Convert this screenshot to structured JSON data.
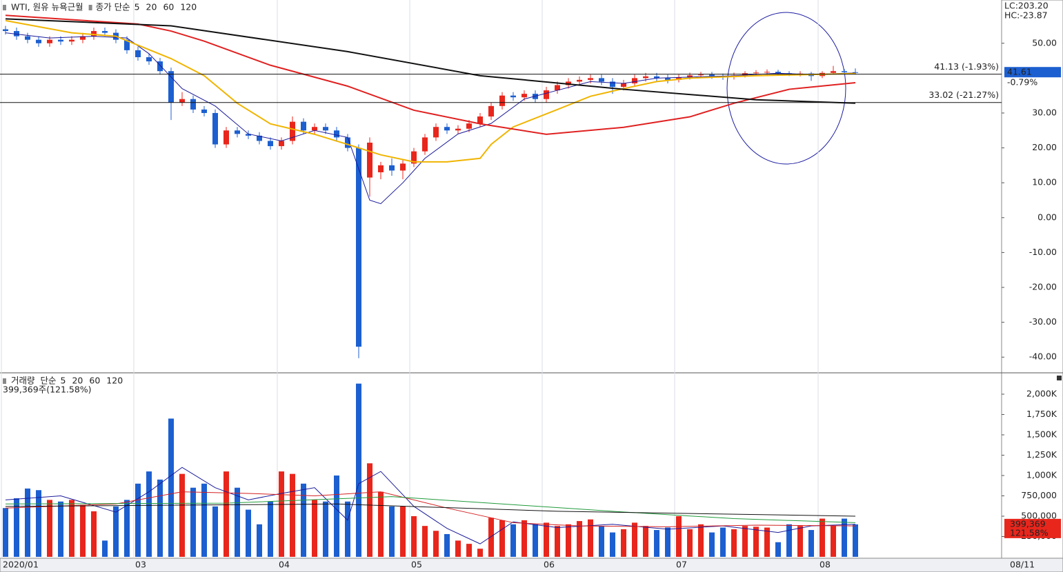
{
  "chart_data": [
    {
      "type": "candlestick",
      "title": "WTI, 원유 뉴욕근월",
      "ma_label": "종가 단순",
      "categories": [
        "2020/01",
        null,
        null,
        null,
        null,
        null,
        null,
        null,
        null,
        null,
        null,
        null,
        "03",
        null,
        null,
        null,
        null,
        null,
        null,
        null,
        null,
        null,
        null,
        null,
        null,
        "04",
        null,
        null,
        null,
        null,
        null,
        null,
        null,
        null,
        null,
        null,
        null,
        "05",
        null,
        null,
        null,
        null,
        null,
        null,
        null,
        null,
        null,
        null,
        null,
        "06",
        null,
        null,
        null,
        null,
        null,
        null,
        null,
        null,
        null,
        null,
        null,
        "07",
        null,
        null,
        null,
        null,
        null,
        null,
        null,
        null,
        null,
        null,
        null,
        null,
        "08",
        null,
        null,
        null
      ],
      "open": [
        54,
        53.5,
        52,
        51,
        50,
        51,
        50.5,
        51,
        52,
        53.5,
        53,
        51,
        48,
        46,
        44.8,
        42,
        33,
        34,
        31,
        30,
        21,
        25,
        24,
        23.5,
        22,
        20.5,
        22,
        27.5,
        25,
        26,
        25,
        23,
        20,
        11.5,
        13,
        15,
        13.5,
        15.5,
        19,
        23,
        26,
        25,
        25.5,
        27,
        29,
        32,
        35,
        34.5,
        35.5,
        34,
        36.5,
        38,
        39,
        39.5,
        40,
        39,
        37.5,
        38.5,
        40,
        40.5,
        40,
        39.5,
        40.2,
        40.8,
        41,
        40.6,
        40.3,
        40.8,
        41.4,
        41.6,
        41.8,
        41.4,
        41.2,
        41.3,
        40.6,
        41.5,
        42,
        41.7
      ],
      "high": [
        55,
        54.5,
        53,
        52,
        52,
        52,
        52,
        53,
        54.5,
        54.5,
        54,
        52,
        49,
        47,
        45.8,
        43,
        36,
        35,
        32,
        31,
        26,
        26,
        25,
        24.5,
        23,
        23,
        29,
        28.5,
        27,
        27,
        26,
        24,
        21,
        23,
        16,
        17,
        16.5,
        20,
        24,
        27,
        27,
        26.5,
        28,
        30,
        33,
        36,
        36,
        36.5,
        36.5,
        37.5,
        39,
        40,
        40.5,
        41,
        41,
        40,
        39.5,
        41,
        41.5,
        41.5,
        41,
        41,
        41.6,
        41.8,
        41.8,
        41.3,
        41.6,
        42,
        42.3,
        42.5,
        42.4,
        42,
        42,
        41.8,
        42,
        43.5,
        42.6,
        42.8
      ],
      "low": [
        52.5,
        51,
        50,
        49,
        49,
        49.5,
        49.5,
        50,
        51,
        52,
        50,
        47,
        45,
        43.8,
        41,
        28,
        32,
        30,
        29,
        20,
        20,
        23,
        22.5,
        21,
        19.5,
        19.5,
        21,
        24,
        24,
        24,
        22,
        19,
        -40.3,
        6,
        11,
        12,
        11,
        14.5,
        18,
        22,
        24,
        24,
        24.5,
        26,
        28,
        31,
        33.5,
        33.5,
        33,
        33,
        35.5,
        37,
        38,
        38.5,
        38,
        35.5,
        36.5,
        37.5,
        39,
        39,
        38.5,
        38.8,
        39.6,
        40,
        39.8,
        39.5,
        39.6,
        40.2,
        40.8,
        41,
        40.8,
        40.6,
        40.5,
        39.2,
        40,
        41,
        41,
        41
      ],
      "close": [
        53.5,
        52,
        51,
        50,
        51,
        50.5,
        51,
        52,
        53.5,
        53,
        51,
        48,
        46,
        44.8,
        42,
        33,
        34,
        31,
        30,
        21,
        25,
        24,
        23.5,
        22,
        20.5,
        22,
        27.5,
        25,
        26,
        25,
        23,
        20,
        -37,
        21.5,
        15,
        13.5,
        15.5,
        19,
        23,
        26,
        25,
        25.5,
        27,
        29,
        32,
        35,
        34.5,
        35.5,
        34,
        36.5,
        38,
        39,
        39.5,
        40,
        39,
        37.5,
        38.5,
        40,
        40.5,
        40,
        39.5,
        40.2,
        40.8,
        41,
        40.6,
        40.3,
        40.8,
        41.4,
        41.6,
        41.8,
        41.4,
        41.2,
        41.3,
        40.6,
        41.5,
        42,
        41.7,
        41.61
      ],
      "up_color": "#e8261c",
      "down_color": "#1c5fd0",
      "ylim": [
        -44.3,
        62.4
      ],
      "yticks": [
        {
          "value": 50,
          "label": "50.00"
        },
        {
          "value": 30,
          "label": "30.00"
        },
        {
          "value": 20,
          "label": "20.00"
        },
        {
          "value": 10,
          "label": "10.00"
        },
        {
          "value": 0,
          "label": "0.00"
        },
        {
          "value": -10,
          "label": "-10.00"
        },
        {
          "value": -20,
          "label": "-20.00"
        },
        {
          "value": -30,
          "label": "-30.00"
        },
        {
          "value": -40,
          "label": "-40.00"
        }
      ],
      "lines": [
        {
          "name": "5",
          "color": "#1a1a9a",
          "width": 1,
          "x": [
            0,
            4,
            8,
            11,
            13,
            16,
            19,
            22,
            25,
            28,
            31,
            33,
            34,
            36,
            38,
            41,
            44,
            47,
            50,
            53,
            56,
            59,
            62,
            66,
            70,
            73,
            77
          ],
          "values": [
            53,
            51.5,
            52,
            51.5,
            47,
            37,
            32,
            24,
            22,
            25,
            23,
            5,
            4,
            10,
            17,
            24,
            27,
            34,
            36.5,
            39,
            38.5,
            40,
            40.3,
            40.7,
            41.4,
            41,
            41.5
          ]
        },
        {
          "name": "20",
          "color": "#f0b400",
          "width": 2,
          "x": [
            0,
            6,
            10,
            15,
            18,
            21,
            24,
            28,
            31,
            34,
            37,
            40,
            43,
            44,
            46,
            50,
            53,
            56,
            59,
            62,
            68,
            77
          ],
          "values": [
            56.5,
            53,
            52,
            45.6,
            40.7,
            32.8,
            26.9,
            23.9,
            21,
            18,
            16,
            16,
            17,
            21,
            26,
            31,
            34.8,
            37,
            39,
            40,
            40.7,
            41.3
          ]
        },
        {
          "name": "60",
          "color": "#e02020",
          "width": 2,
          "x": [
            0,
            12,
            15,
            18,
            24,
            31,
            37,
            43,
            49,
            56,
            62,
            66,
            71,
            77
          ],
          "values": [
            58,
            55.5,
            53.5,
            50.6,
            43.7,
            37.7,
            30.8,
            26.9,
            23.9,
            25.9,
            28.9,
            32.8,
            36.8,
            38.7
          ]
        },
        {
          "name": "120",
          "color": "#111111",
          "width": 2,
          "x": [
            0,
            15,
            31,
            43,
            56,
            68,
            77
          ],
          "values": [
            57,
            55,
            47.6,
            40.7,
            36.8,
            33.8,
            32.8
          ]
        }
      ],
      "levels": [
        {
          "value": 41.13,
          "label": "41.13 (-1.93%)"
        },
        {
          "value": 33.02,
          "label": "33.02 (-21.27%)"
        }
      ],
      "last": 41.61,
      "change": "-0.79%",
      "lc": "LC:203.20",
      "hc": "HC:-23.87",
      "date_label": "08/11"
    },
    {
      "type": "bar",
      "title": "거래량",
      "ma_label": "단순",
      "info": "399,369주(121.58%)",
      "values": [
        600000,
        720000,
        840000,
        820000,
        700000,
        680000,
        700000,
        640000,
        560000,
        200000,
        620000,
        700000,
        900000,
        1050000,
        950000,
        1700000,
        1020000,
        850000,
        900000,
        620000,
        1050000,
        850000,
        580000,
        400000,
        680000,
        1050000,
        1020000,
        900000,
        700000,
        680000,
        1000000,
        680000,
        2130000,
        1150000,
        800000,
        620000,
        620000,
        500000,
        380000,
        320000,
        280000,
        200000,
        160000,
        100000,
        480000,
        450000,
        400000,
        450000,
        400000,
        420000,
        380000,
        400000,
        440000,
        460000,
        380000,
        300000,
        340000,
        420000,
        380000,
        330000,
        360000,
        500000,
        340000,
        400000,
        300000,
        360000,
        340000,
        380000,
        370000,
        360000,
        180000,
        400000,
        380000,
        330000,
        470000,
        380000,
        470000,
        399369
      ],
      "last_label": "399,369",
      "last_pct": "121.58%",
      "ylim": [
        0,
        2254000
      ],
      "yticks": [
        {
          "value": 2000000,
          "label": "2,000K"
        },
        {
          "value": 1750000,
          "label": "1,750K"
        },
        {
          "value": 1500000,
          "label": "1,500K"
        },
        {
          "value": 1250000,
          "label": "1,250K"
        },
        {
          "value": 1000000,
          "label": "1,000K"
        },
        {
          "value": 750000,
          "label": "750,000"
        },
        {
          "value": 500000,
          "label": "500,000"
        },
        {
          "value": 250000,
          "label": "250,000"
        }
      ],
      "lines": [
        {
          "name": "5",
          "color": "#1a1a9a",
          "x": [
            0,
            5,
            10,
            13,
            16,
            19,
            22,
            25,
            28,
            31,
            32,
            34,
            37,
            40,
            43,
            46,
            50,
            55,
            60,
            65,
            70,
            73,
            77
          ],
          "values": [
            700000,
            750000,
            550000,
            800000,
            1100000,
            850000,
            700000,
            780000,
            850000,
            450000,
            900000,
            1050000,
            620000,
            350000,
            160000,
            430000,
            360000,
            400000,
            340000,
            380000,
            300000,
            380000,
            400000
          ]
        },
        {
          "name": "20",
          "color": "#d42020",
          "x": [
            0,
            10,
            16,
            22,
            28,
            34,
            40,
            46,
            52,
            60,
            68,
            77
          ],
          "values": [
            600000,
            650000,
            800000,
            780000,
            750000,
            800000,
            600000,
            420000,
            380000,
            370000,
            390000,
            380000
          ]
        },
        {
          "name": "60",
          "color": "#1f9a3a",
          "x": [
            0,
            20,
            35,
            45,
            55,
            66,
            77
          ],
          "values": [
            650000,
            660000,
            740000,
            650000,
            560000,
            470000,
            420000
          ]
        },
        {
          "name": "120",
          "color": "#111111",
          "x": [
            0,
            30,
            50,
            77
          ],
          "values": [
            620000,
            650000,
            560000,
            500000
          ]
        }
      ]
    }
  ]
}
